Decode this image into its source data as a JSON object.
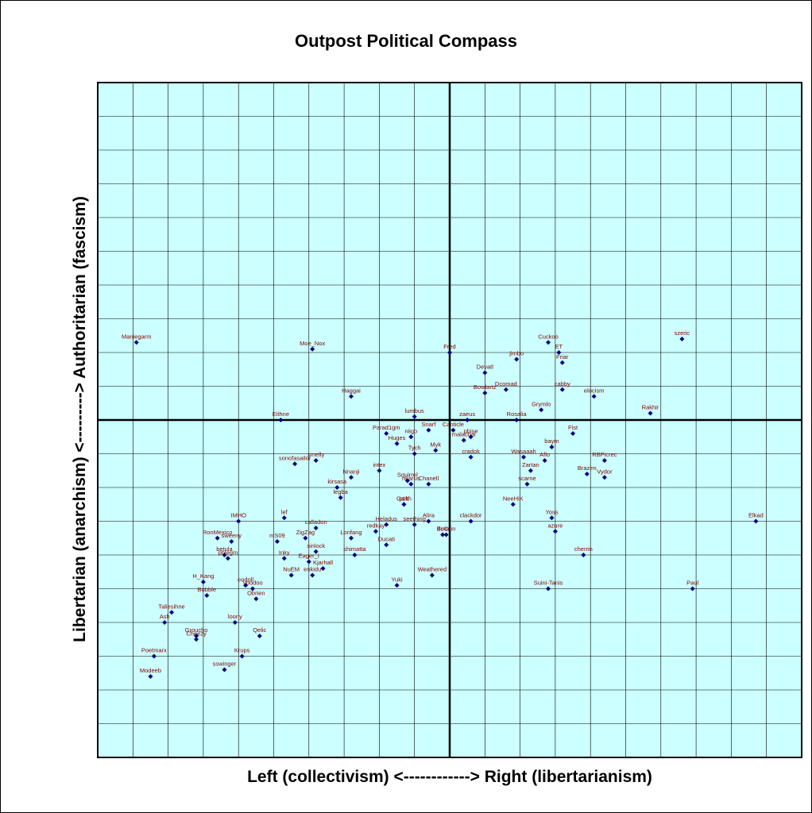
{
  "chart_data": {
    "type": "scatter",
    "title": "Outpost Political Compass",
    "xlabel": "Left (collectivism) <------------> Right (libertarianism)",
    "ylabel": "Libertarian (anarchism) <---------> Authoritarian (fascism)",
    "xlim": [
      -10,
      10
    ],
    "ylim": [
      -10,
      10
    ],
    "grid": true,
    "colors": {
      "plot_bg": "#ccffff",
      "grid": "#000000",
      "point": "#000080",
      "label": "#800000"
    },
    "points": [
      {
        "label": "Maniegarm",
        "x": -8.9,
        "y": 2.3
      },
      {
        "label": "Moe_Nox",
        "x": -3.9,
        "y": 2.1
      },
      {
        "label": "Haggai",
        "x": -2.8,
        "y": 0.7
      },
      {
        "label": "Eithne",
        "x": -4.8,
        "y": 0.0
      },
      {
        "label": "lumbus",
        "x": -1.0,
        "y": 0.1
      },
      {
        "label": "Fred",
        "x": 0.0,
        "y": 2.0
      },
      {
        "label": "szeric",
        "x": 6.6,
        "y": 2.4
      },
      {
        "label": "Cuckoo",
        "x": 2.8,
        "y": 2.3
      },
      {
        "label": "jimbo",
        "x": 1.9,
        "y": 1.8
      },
      {
        "label": "ET",
        "x": 3.1,
        "y": 2.0
      },
      {
        "label": "Friar",
        "x": 3.2,
        "y": 1.7
      },
      {
        "label": "Devatl",
        "x": 1.0,
        "y": 1.4
      },
      {
        "label": "Dcomad",
        "x": 1.6,
        "y": 0.9
      },
      {
        "label": "cabby",
        "x": 3.2,
        "y": 0.9
      },
      {
        "label": "Bowlartz",
        "x": 1.0,
        "y": 0.8
      },
      {
        "label": "elocism",
        "x": 4.1,
        "y": 0.7
      },
      {
        "label": "Grymlo",
        "x": 2.6,
        "y": 0.3
      },
      {
        "label": "Rakhir",
        "x": 5.7,
        "y": 0.2
      },
      {
        "label": "Rosalia",
        "x": 1.9,
        "y": 0.0
      },
      {
        "label": "zaeus",
        "x": 0.5,
        "y": 0.0
      },
      {
        "label": "Canticle",
        "x": 0.1,
        "y": -0.3
      },
      {
        "label": "Fist",
        "x": 3.5,
        "y": -0.4
      },
      {
        "label": "Parad1gm",
        "x": -1.8,
        "y": -0.4
      },
      {
        "label": "niigo",
        "x": -1.1,
        "y": -0.5
      },
      {
        "label": "Snarf",
        "x": -0.6,
        "y": -0.3
      },
      {
        "label": "phise",
        "x": 0.6,
        "y": -0.5
      },
      {
        "label": "Huges",
        "x": -1.5,
        "y": -0.7
      },
      {
        "label": "Myk",
        "x": -0.4,
        "y": -0.9
      },
      {
        "label": "malachai",
        "x": 0.4,
        "y": -0.6
      },
      {
        "label": "Tych",
        "x": -1.0,
        "y": -1.0
      },
      {
        "label": "baym",
        "x": 2.9,
        "y": -0.8
      },
      {
        "label": "smelly",
        "x": -3.8,
        "y": -1.2
      },
      {
        "label": "sonofasailor",
        "x": -4.4,
        "y": -1.3
      },
      {
        "label": "Wasaaah",
        "x": 2.1,
        "y": -1.1
      },
      {
        "label": "Aflo",
        "x": 2.7,
        "y": -1.2
      },
      {
        "label": "RBPicrec",
        "x": 4.4,
        "y": -1.2
      },
      {
        "label": "cradok",
        "x": 0.6,
        "y": -1.1
      },
      {
        "label": "intex",
        "x": -2.0,
        "y": -1.5
      },
      {
        "label": "Nnanji",
        "x": -2.8,
        "y": -1.7
      },
      {
        "label": "Squirrel",
        "x": -1.2,
        "y": -1.8
      },
      {
        "label": "Zartan",
        "x": 2.3,
        "y": -1.5
      },
      {
        "label": "Brazen",
        "x": 3.9,
        "y": -1.6
      },
      {
        "label": "Vydor",
        "x": 4.4,
        "y": -1.7
      },
      {
        "label": "nkarus",
        "x": -1.1,
        "y": -1.9
      },
      {
        "label": "Chanell",
        "x": -0.6,
        "y": -1.9
      },
      {
        "label": "kirsasa",
        "x": -3.2,
        "y": -2.0
      },
      {
        "label": "scarne",
        "x": 2.2,
        "y": -1.9
      },
      {
        "label": "legba",
        "x": -3.1,
        "y": -2.3
      },
      {
        "label": "ptik",
        "x": -1.3,
        "y": -2.5
      },
      {
        "label": "Garth",
        "x": -1.3,
        "y": -2.5
      },
      {
        "label": "NeeHiK",
        "x": 1.8,
        "y": -2.5
      },
      {
        "label": "clackdor",
        "x": 0.6,
        "y": -3.0
      },
      {
        "label": "IMHO",
        "x": -6.0,
        "y": -3.0
      },
      {
        "label": "lef",
        "x": -4.7,
        "y": -2.9
      },
      {
        "label": "Heladus",
        "x": -1.8,
        "y": -3.1
      },
      {
        "label": "Alira",
        "x": -0.6,
        "y": -3.0
      },
      {
        "label": "Yoss",
        "x": 2.9,
        "y": -2.9
      },
      {
        "label": "Elkad",
        "x": 8.7,
        "y": -3.0
      },
      {
        "label": "calladon",
        "x": -3.8,
        "y": -3.2
      },
      {
        "label": "Lonfang",
        "x": -2.8,
        "y": -3.5
      },
      {
        "label": "redkay",
        "x": -2.1,
        "y": -3.3
      },
      {
        "label": "seething",
        "x": -1.0,
        "y": -3.1
      },
      {
        "label": "illmurin",
        "x": -0.1,
        "y": -3.4
      },
      {
        "label": "azure",
        "x": 3.0,
        "y": -3.3
      },
      {
        "label": "RonMexico",
        "x": -6.6,
        "y": -3.5
      },
      {
        "label": "sweeny",
        "x": -6.2,
        "y": -3.6
      },
      {
        "label": "ZigZag",
        "x": -4.1,
        "y": -3.5
      },
      {
        "label": "mS09",
        "x": -4.9,
        "y": -3.6
      },
      {
        "label": "sinlock",
        "x": -3.8,
        "y": -3.9
      },
      {
        "label": "Ducati",
        "x": -1.8,
        "y": -3.7
      },
      {
        "label": "SoO",
        "x": -0.2,
        "y": -3.4
      },
      {
        "label": "betula",
        "x": -6.4,
        "y": -4.0
      },
      {
        "label": "phlegm",
        "x": -6.3,
        "y": -4.1
      },
      {
        "label": "Inky",
        "x": -4.7,
        "y": -4.1
      },
      {
        "label": "shimatta",
        "x": -2.7,
        "y": -4.0
      },
      {
        "label": "Eager_I",
        "x": -4.0,
        "y": -4.2
      },
      {
        "label": "cherrin",
        "x": 3.8,
        "y": -4.0
      },
      {
        "label": "NuEM",
        "x": -4.5,
        "y": -4.6
      },
      {
        "label": "Kjarhall",
        "x": -3.6,
        "y": -4.4
      },
      {
        "label": "enkidu",
        "x": -3.9,
        "y": -4.6
      },
      {
        "label": "H_Kang",
        "x": -7.0,
        "y": -4.8
      },
      {
        "label": "eodoll",
        "x": -5.8,
        "y": -4.9
      },
      {
        "label": "Voodoo",
        "x": -5.6,
        "y": -5.0
      },
      {
        "label": "Obrien",
        "x": -5.5,
        "y": -5.3
      },
      {
        "label": "Weathered",
        "x": -0.5,
        "y": -4.6
      },
      {
        "label": "Yuki",
        "x": -1.5,
        "y": -4.9
      },
      {
        "label": "Suini-Tanis",
        "x": 2.8,
        "y": -5.0
      },
      {
        "label": "Paul",
        "x": 6.9,
        "y": -5.0
      },
      {
        "label": "Bubble",
        "x": -6.9,
        "y": -5.2
      },
      {
        "label": "Taliesihne",
        "x": -7.9,
        "y": -5.7
      },
      {
        "label": "Ash",
        "x": -8.1,
        "y": -6.0
      },
      {
        "label": "Groucho",
        "x": -7.2,
        "y": -6.4
      },
      {
        "label": "loony",
        "x": -6.1,
        "y": -6.0
      },
      {
        "label": "Qelic",
        "x": -5.4,
        "y": -6.4
      },
      {
        "label": "Cheezy",
        "x": -7.2,
        "y": -6.5
      },
      {
        "label": "Krups",
        "x": -5.9,
        "y": -7.0
      },
      {
        "label": "Poetmarx",
        "x": -8.4,
        "y": -7.0
      },
      {
        "label": "sswinger",
        "x": -6.4,
        "y": -7.4
      },
      {
        "label": "Modeeb",
        "x": -8.5,
        "y": -7.6
      }
    ]
  }
}
